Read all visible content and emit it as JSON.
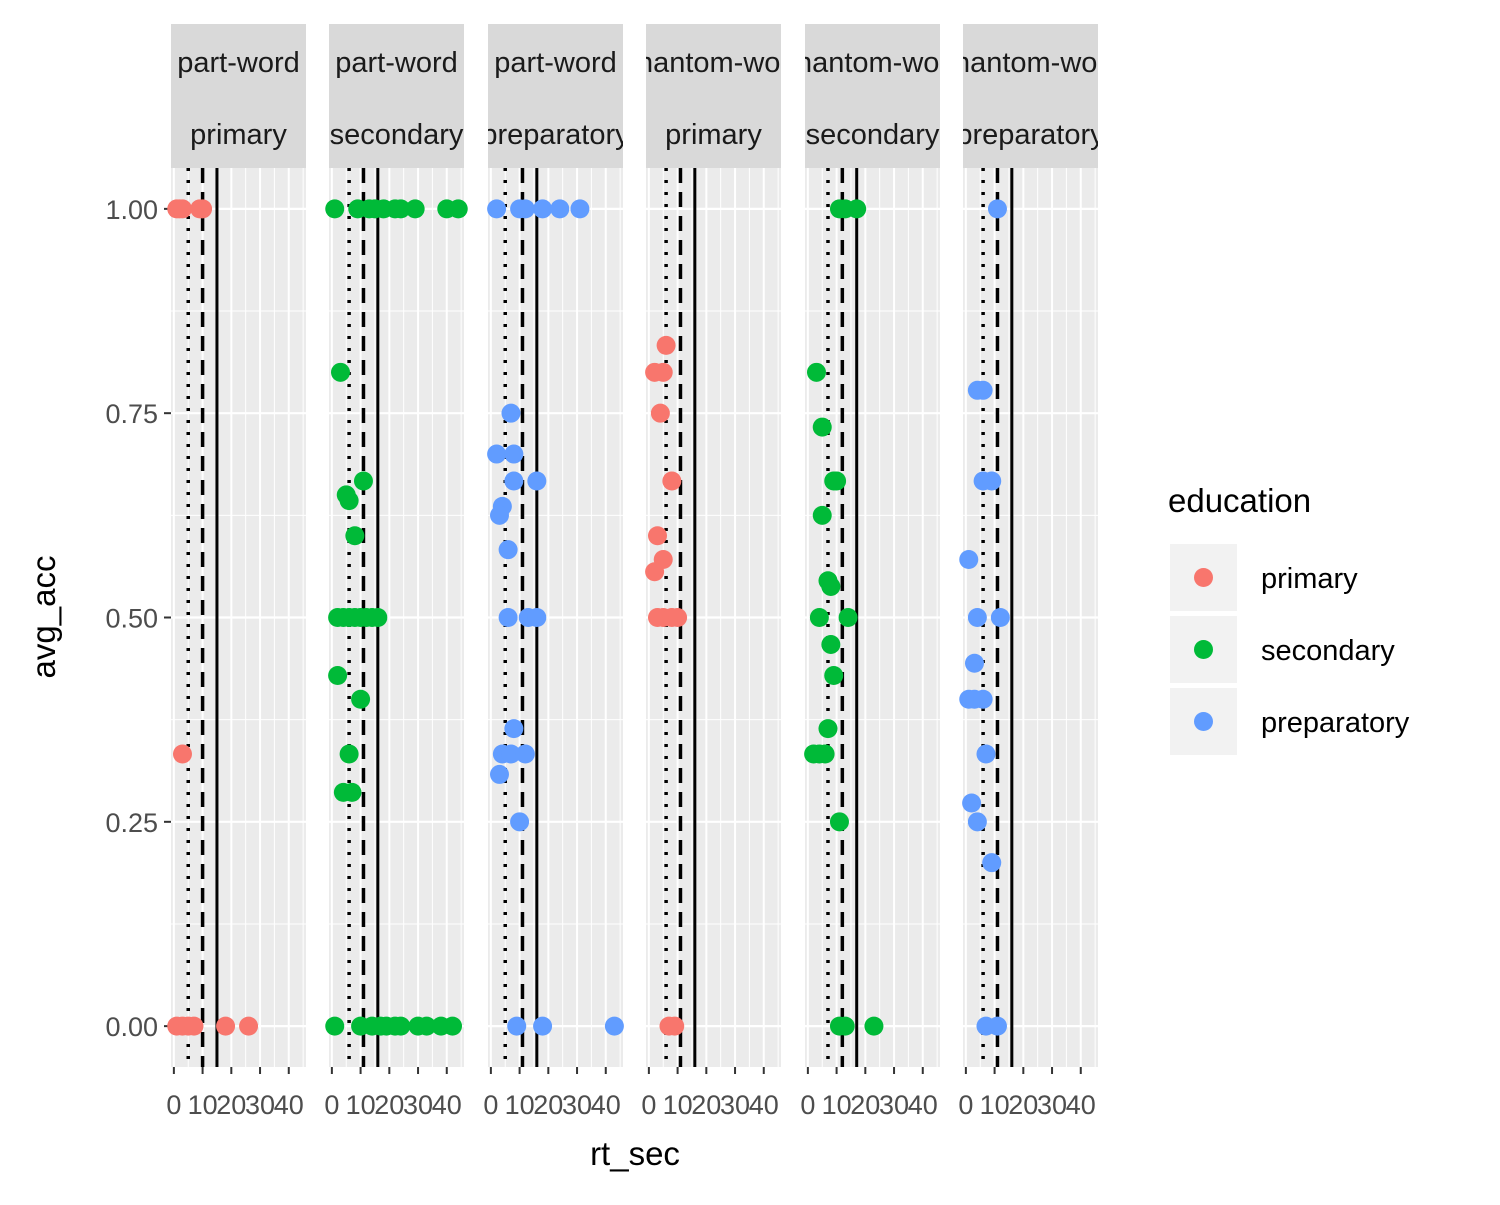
{
  "chart_data": {
    "type": "scatter",
    "xlabel": "rt_sec",
    "ylabel": "avg_acc",
    "xlim": [
      -1,
      46
    ],
    "ylim": [
      -0.05,
      1.05
    ],
    "x_ticks": [
      0,
      10,
      20,
      30,
      40
    ],
    "x_tick_labels": [
      "0",
      "10",
      "20",
      "30",
      "40"
    ],
    "y_ticks": [
      0,
      0.25,
      0.5,
      0.75,
      1.0
    ],
    "y_tick_labels": [
      "0.00",
      "0.25",
      "0.50",
      "0.75",
      "1.00"
    ],
    "grid": true,
    "legend": {
      "title": "education",
      "position": "right",
      "entries": [
        {
          "label": "primary",
          "color": "#F8766D"
        },
        {
          "label": "secondary",
          "color": "#00BA38"
        },
        {
          "label": "preparatory",
          "color": "#619CFF"
        }
      ]
    },
    "reference_lines": {
      "dotted_x": 5,
      "dashed_x": 10,
      "solid_x": 15
    },
    "panels": [
      {
        "strip_top": "part-word",
        "strip_bottom": "primary",
        "dotted_x": 5,
        "dashed_x": 10,
        "solid_x": 15,
        "series": [
          {
            "name": "primary",
            "color": "#F8766D",
            "points": [
              [
                1,
                1.0
              ],
              [
                2,
                1.0
              ],
              [
                3,
                1.0
              ],
              [
                9,
                1.0
              ],
              [
                10,
                1.0
              ],
              [
                3,
                0.333
              ],
              [
                1,
                0.0
              ],
              [
                3,
                0.0
              ],
              [
                5,
                0.0
              ],
              [
                7,
                0.0
              ],
              [
                18,
                0.0
              ],
              [
                26,
                0.0
              ]
            ]
          }
        ]
      },
      {
        "strip_top": "part-word",
        "strip_bottom": "secondary",
        "dotted_x": 6,
        "dashed_x": 11,
        "solid_x": 16,
        "series": [
          {
            "name": "secondary",
            "color": "#00BA38",
            "points": [
              [
                1,
                1.0
              ],
              [
                9,
                1.0
              ],
              [
                13,
                1.0
              ],
              [
                15,
                1.0
              ],
              [
                18,
                1.0
              ],
              [
                22,
                1.0
              ],
              [
                24,
                1.0
              ],
              [
                29,
                1.0
              ],
              [
                40,
                1.0
              ],
              [
                44,
                1.0
              ],
              [
                3,
                0.8
              ],
              [
                11,
                0.667
              ],
              [
                5,
                0.65
              ],
              [
                6,
                0.643
              ],
              [
                8,
                0.6
              ],
              [
                2,
                0.5
              ],
              [
                4,
                0.5
              ],
              [
                6,
                0.5
              ],
              [
                8,
                0.5
              ],
              [
                10,
                0.5
              ],
              [
                12,
                0.5
              ],
              [
                14,
                0.5
              ],
              [
                16,
                0.5
              ],
              [
                2,
                0.429
              ],
              [
                10,
                0.4
              ],
              [
                6,
                0.333
              ],
              [
                4,
                0.286
              ],
              [
                7,
                0.286
              ],
              [
                1,
                0.0
              ],
              [
                10,
                0.0
              ],
              [
                14,
                0.0
              ],
              [
                17,
                0.0
              ],
              [
                19,
                0.0
              ],
              [
                22,
                0.0
              ],
              [
                24,
                0.0
              ],
              [
                30,
                0.0
              ],
              [
                33,
                0.0
              ],
              [
                38,
                0.0
              ],
              [
                42,
                0.0
              ]
            ]
          }
        ]
      },
      {
        "strip_top": "part-word",
        "strip_bottom": "preparatory",
        "dotted_x": 5,
        "dashed_x": 11,
        "solid_x": 16,
        "series": [
          {
            "name": "preparatory",
            "color": "#619CFF",
            "points": [
              [
                2,
                1.0
              ],
              [
                10,
                1.0
              ],
              [
                12,
                1.0
              ],
              [
                18,
                1.0
              ],
              [
                24,
                1.0
              ],
              [
                31,
                1.0
              ],
              [
                7,
                0.75
              ],
              [
                2,
                0.7
              ],
              [
                8,
                0.7
              ],
              [
                8,
                0.667
              ],
              [
                16,
                0.667
              ],
              [
                4,
                0.636
              ],
              [
                3,
                0.625
              ],
              [
                6,
                0.583
              ],
              [
                6,
                0.5
              ],
              [
                13,
                0.5
              ],
              [
                16,
                0.5
              ],
              [
                8,
                0.364
              ],
              [
                4,
                0.333
              ],
              [
                7,
                0.333
              ],
              [
                12,
                0.333
              ],
              [
                3,
                0.308
              ],
              [
                10,
                0.25
              ],
              [
                9,
                0.0
              ],
              [
                18,
                0.0
              ],
              [
                43,
                0.0
              ]
            ]
          }
        ]
      },
      {
        "strip_top": "phantom-word",
        "strip_bottom": "primary",
        "dotted_x": 6,
        "dashed_x": 11,
        "solid_x": 16,
        "series": [
          {
            "name": "primary",
            "color": "#F8766D",
            "points": [
              [
                6,
                0.833
              ],
              [
                2,
                0.8
              ],
              [
                5,
                0.8
              ],
              [
                4,
                0.75
              ],
              [
                8,
                0.667
              ],
              [
                3,
                0.6
              ],
              [
                5,
                0.571
              ],
              [
                2,
                0.556
              ],
              [
                3,
                0.5
              ],
              [
                5,
                0.5
              ],
              [
                8,
                0.5
              ],
              [
                10,
                0.5
              ],
              [
                7,
                0.0
              ],
              [
                9,
                0.0
              ]
            ]
          }
        ]
      },
      {
        "strip_top": "phantom-word",
        "strip_bottom": "secondary",
        "dotted_x": 7,
        "dashed_x": 12,
        "solid_x": 17,
        "series": [
          {
            "name": "secondary",
            "color": "#00BA38",
            "points": [
              [
                11,
                1.0
              ],
              [
                13,
                1.0
              ],
              [
                17,
                1.0
              ],
              [
                3,
                0.8
              ],
              [
                5,
                0.733
              ],
              [
                9,
                0.667
              ],
              [
                10,
                0.667
              ],
              [
                5,
                0.625
              ],
              [
                7,
                0.545
              ],
              [
                8,
                0.538
              ],
              [
                4,
                0.5
              ],
              [
                14,
                0.5
              ],
              [
                8,
                0.467
              ],
              [
                9,
                0.429
              ],
              [
                7,
                0.364
              ],
              [
                2,
                0.333
              ],
              [
                4,
                0.333
              ],
              [
                6,
                0.333
              ],
              [
                11,
                0.25
              ],
              [
                11,
                0.0
              ],
              [
                13,
                0.0
              ],
              [
                23,
                0.0
              ]
            ]
          }
        ]
      },
      {
        "strip_top": "phantom-word",
        "strip_bottom": "preparatory",
        "dotted_x": 6,
        "dashed_x": 11,
        "solid_x": 16,
        "series": [
          {
            "name": "preparatory",
            "color": "#619CFF",
            "points": [
              [
                11,
                1.0
              ],
              [
                4,
                0.778
              ],
              [
                6,
                0.778
              ],
              [
                6,
                0.667
              ],
              [
                9,
                0.667
              ],
              [
                1,
                0.571
              ],
              [
                4,
                0.5
              ],
              [
                12,
                0.5
              ],
              [
                3,
                0.444
              ],
              [
                1,
                0.4
              ],
              [
                3,
                0.4
              ],
              [
                6,
                0.4
              ],
              [
                7,
                0.333
              ],
              [
                2,
                0.273
              ],
              [
                4,
                0.25
              ],
              [
                9,
                0.2
              ],
              [
                7,
                0.0
              ],
              [
                11,
                0.0
              ]
            ]
          }
        ]
      }
    ]
  }
}
